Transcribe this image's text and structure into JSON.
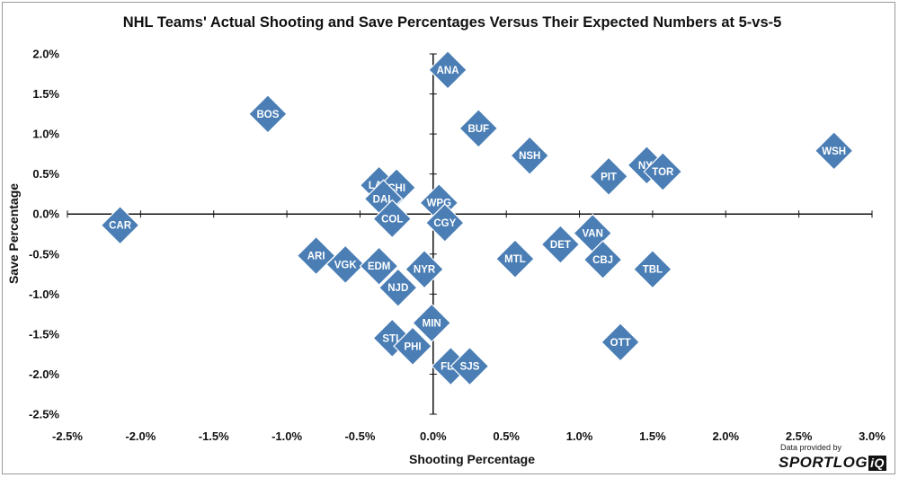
{
  "chart_data": {
    "type": "scatter",
    "title": "NHL Teams' Actual Shooting and Save Percentages Versus Their Expected Numbers at 5-vs-5",
    "xlabel": "Shooting Percentage",
    "ylabel": "Save Percentage",
    "xlim": [
      -2.5,
      3.0
    ],
    "ylim": [
      -2.5,
      2.0
    ],
    "x_ticks": [
      -2.5,
      -2.0,
      -1.5,
      -1.0,
      -0.5,
      0.0,
      0.5,
      1.0,
      1.5,
      2.0,
      2.5,
      3.0
    ],
    "y_ticks": [
      2.0,
      1.5,
      1.0,
      0.5,
      0.0,
      -0.5,
      -1.0,
      -1.5,
      -2.0,
      -2.5
    ],
    "x_tick_labels": [
      "-2.5%",
      "-2.0%",
      "-1.5%",
      "-1.0%",
      "-0.5%",
      "0.0%",
      "0.5%",
      "1.0%",
      "1.5%",
      "2.0%",
      "2.5%",
      "3.0%"
    ],
    "y_tick_labels": [
      "2.0%",
      "1.5%",
      "1.0%",
      "0.5%",
      "0.0%",
      "-0.5%",
      "-1.0%",
      "-1.5%",
      "-2.0%",
      "-2.5%"
    ],
    "grid": false,
    "marker_color": "#4a7eb5",
    "marker_edge_color": "#ffffff",
    "points": [
      {
        "label": "ANA",
        "x": 0.1,
        "y": 1.8
      },
      {
        "label": "BOS",
        "x": -1.13,
        "y": 1.25
      },
      {
        "label": "BUF",
        "x": 0.31,
        "y": 1.07
      },
      {
        "label": "NSH",
        "x": 0.66,
        "y": 0.73
      },
      {
        "label": "WSH",
        "x": 2.74,
        "y": 0.79
      },
      {
        "label": "NYI",
        "x": 1.46,
        "y": 0.61
      },
      {
        "label": "TOR",
        "x": 1.57,
        "y": 0.53
      },
      {
        "label": "PIT",
        "x": 1.2,
        "y": 0.47
      },
      {
        "label": "LAK",
        "x": -0.37,
        "y": 0.36
      },
      {
        "label": "CHI",
        "x": -0.25,
        "y": 0.33
      },
      {
        "label": "DAL",
        "x": -0.34,
        "y": 0.19
      },
      {
        "label": "WPG",
        "x": 0.04,
        "y": 0.14
      },
      {
        "label": "COL",
        "x": -0.28,
        "y": -0.06
      },
      {
        "label": "CGY",
        "x": 0.08,
        "y": -0.11
      },
      {
        "label": "CAR",
        "x": -2.14,
        "y": -0.14
      },
      {
        "label": "VAN",
        "x": 1.09,
        "y": -0.24
      },
      {
        "label": "DET",
        "x": 0.87,
        "y": -0.38
      },
      {
        "label": "ARI",
        "x": -0.8,
        "y": -0.52
      },
      {
        "label": "MTL",
        "x": 0.56,
        "y": -0.56
      },
      {
        "label": "CBJ",
        "x": 1.16,
        "y": -0.57
      },
      {
        "label": "VGK",
        "x": -0.6,
        "y": -0.63
      },
      {
        "label": "EDM",
        "x": -0.37,
        "y": -0.65
      },
      {
        "label": "TBL",
        "x": 1.5,
        "y": -0.69
      },
      {
        "label": "NYR",
        "x": -0.06,
        "y": -0.69
      },
      {
        "label": "NJD",
        "x": -0.24,
        "y": -0.92
      },
      {
        "label": "MIN",
        "x": -0.01,
        "y": -1.36
      },
      {
        "label": "STL",
        "x": -0.28,
        "y": -1.55
      },
      {
        "label": "OTT",
        "x": 1.28,
        "y": -1.6
      },
      {
        "label": "PHI",
        "x": -0.14,
        "y": -1.65
      },
      {
        "label": "FLA",
        "x": 0.12,
        "y": -1.9
      },
      {
        "label": "SJS",
        "x": 0.25,
        "y": -1.9
      }
    ]
  },
  "credit": {
    "line1": "Data provided by",
    "brand_main": "SPORTLOG",
    "brand_suffix": "iQ"
  }
}
